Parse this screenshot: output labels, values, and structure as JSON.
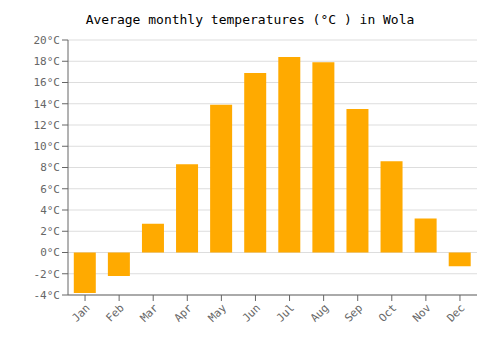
{
  "chart_data": {
    "type": "bar",
    "title": "Average monthly temperatures (°C ) in Wola",
    "categories": [
      "Jan",
      "Feb",
      "Mar",
      "Apr",
      "May",
      "Jun",
      "Jul",
      "Aug",
      "Sep",
      "Oct",
      "Nov",
      "Dec"
    ],
    "values": [
      -3.8,
      -2.2,
      2.7,
      8.3,
      13.9,
      16.9,
      18.4,
      17.9,
      13.5,
      8.6,
      3.2,
      -1.3
    ],
    "color": "#FFAA00",
    "ylim": [
      -4,
      20
    ],
    "yticks": [
      {
        "value": -4,
        "label": "-4°C"
      },
      {
        "value": -2,
        "label": "-2°C"
      },
      {
        "value": 0,
        "label": "0°C"
      },
      {
        "value": 2,
        "label": "2°C"
      },
      {
        "value": 4,
        "label": "4°C"
      },
      {
        "value": 6,
        "label": "6°C"
      },
      {
        "value": 8,
        "label": "8°C"
      },
      {
        "value": 10,
        "label": "10°C"
      },
      {
        "value": 12,
        "label": "12°C"
      },
      {
        "value": 14,
        "label": "14°C"
      },
      {
        "value": 16,
        "label": "16°C"
      },
      {
        "value": 18,
        "label": "18°C"
      },
      {
        "value": 20,
        "label": "20°C"
      }
    ],
    "grid": true
  }
}
